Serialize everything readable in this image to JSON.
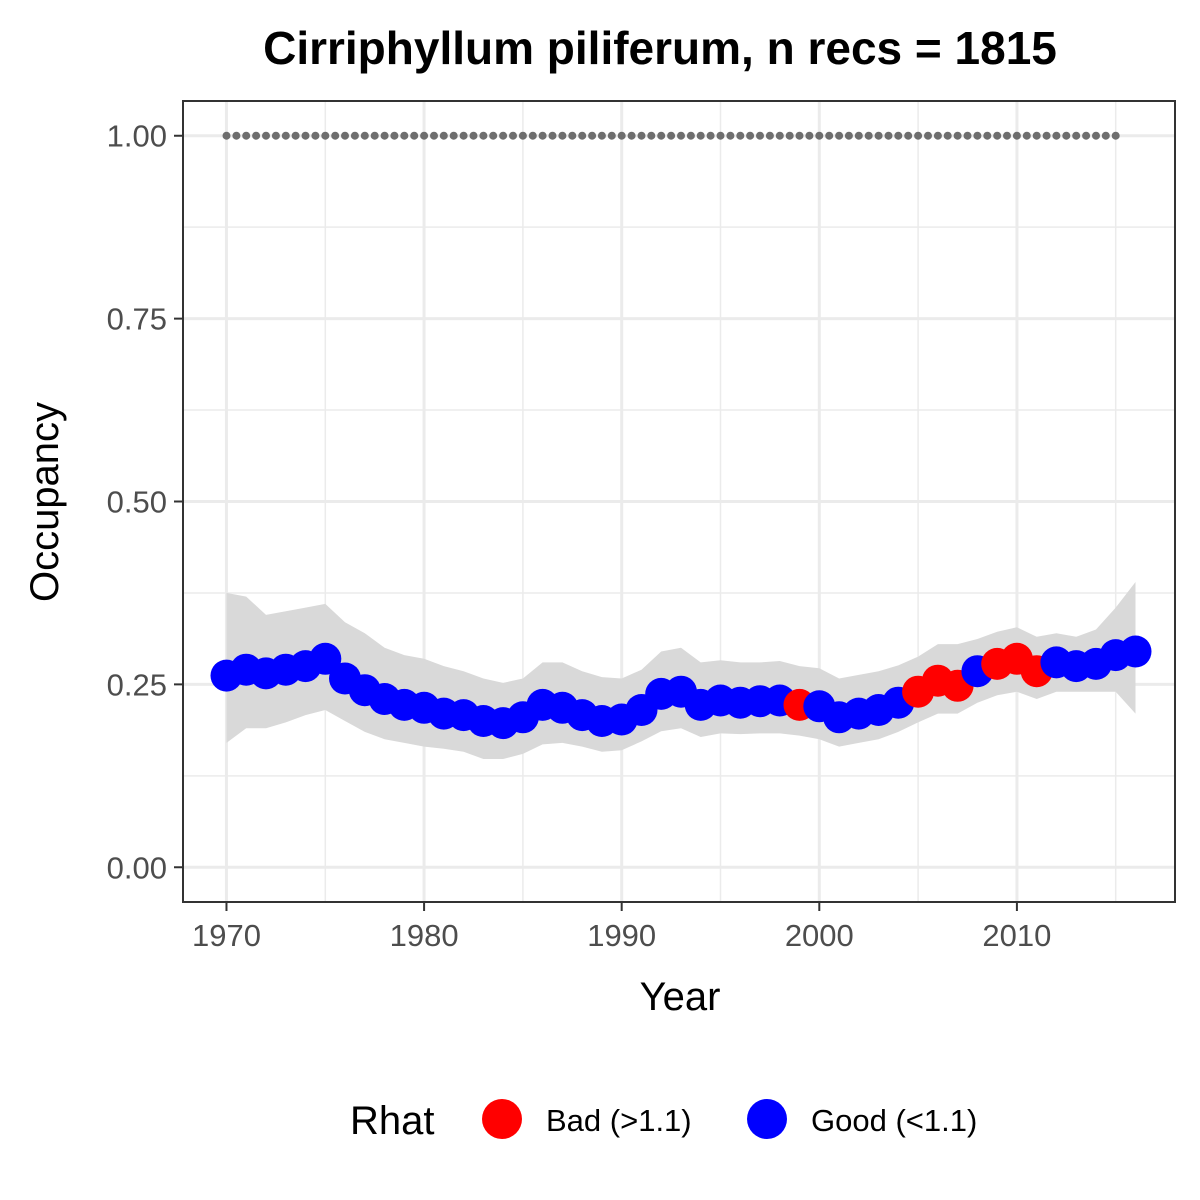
{
  "chart_data": {
    "type": "line",
    "title": "Cirriphyllum piliferum, n recs = 1815",
    "xlabel": "Year",
    "ylabel": "Occupancy",
    "xlim": [
      1967.8,
      2018
    ],
    "ylim": [
      -0.0475,
      1.0475
    ],
    "x_ticks": [
      1970,
      1980,
      1990,
      2000,
      2010
    ],
    "x_tick_labels": [
      "1970",
      "1980",
      "1990",
      "2000",
      "2010"
    ],
    "y_ticks": [
      0,
      0.25,
      0.5,
      0.75,
      1.0
    ],
    "y_tick_labels": [
      "0.00",
      "0.25",
      "0.50",
      "0.75",
      "1.00"
    ],
    "grid": true,
    "legend": {
      "title": "Rhat",
      "position": "bottom",
      "entries": [
        {
          "label": "Bad (>1.1)",
          "color": "#ff0000"
        },
        {
          "label": "Good (<1.1)",
          "color": "#0000ff"
        }
      ]
    },
    "colors": {
      "bad": "#ff0000",
      "good": "#0000ff",
      "ribbon": "#d9d9d9",
      "reference": "#6e6e6e"
    },
    "reference_line": {
      "y": 1.0,
      "x_start": 1970,
      "x_end": 2015,
      "style": "dotted"
    },
    "series": [
      {
        "name": "Occupancy",
        "x": [
          1970,
          1971,
          1972,
          1973,
          1974,
          1975,
          1976,
          1977,
          1978,
          1979,
          1980,
          1981,
          1982,
          1983,
          1984,
          1985,
          1986,
          1987,
          1988,
          1989,
          1990,
          1991,
          1992,
          1993,
          1994,
          1995,
          1996,
          1997,
          1998,
          1999,
          2000,
          2001,
          2002,
          2003,
          2004,
          2005,
          2006,
          2007,
          2008,
          2009,
          2010,
          2011,
          2012,
          2013,
          2014,
          2015,
          2016
        ],
        "y": [
          0.262,
          0.27,
          0.265,
          0.27,
          0.275,
          0.285,
          0.258,
          0.242,
          0.23,
          0.222,
          0.218,
          0.21,
          0.208,
          0.2,
          0.197,
          0.205,
          0.222,
          0.218,
          0.208,
          0.2,
          0.202,
          0.215,
          0.237,
          0.24,
          0.222,
          0.228,
          0.225,
          0.227,
          0.228,
          0.222,
          0.22,
          0.205,
          0.21,
          0.215,
          0.225,
          0.24,
          0.255,
          0.248,
          0.268,
          0.278,
          0.285,
          0.268,
          0.28,
          0.275,
          0.278,
          0.29,
          0.295
        ],
        "lower": [
          0.17,
          0.19,
          0.19,
          0.198,
          0.208,
          0.215,
          0.2,
          0.185,
          0.175,
          0.17,
          0.165,
          0.162,
          0.158,
          0.148,
          0.148,
          0.155,
          0.168,
          0.17,
          0.165,
          0.158,
          0.16,
          0.172,
          0.186,
          0.19,
          0.178,
          0.183,
          0.182,
          0.183,
          0.183,
          0.18,
          0.175,
          0.165,
          0.17,
          0.175,
          0.185,
          0.198,
          0.21,
          0.21,
          0.225,
          0.235,
          0.24,
          0.23,
          0.24,
          0.24,
          0.24,
          0.24,
          0.21
        ],
        "upper": [
          0.375,
          0.37,
          0.345,
          0.35,
          0.355,
          0.36,
          0.335,
          0.32,
          0.3,
          0.29,
          0.285,
          0.275,
          0.268,
          0.258,
          0.252,
          0.258,
          0.28,
          0.28,
          0.268,
          0.26,
          0.258,
          0.27,
          0.295,
          0.3,
          0.28,
          0.283,
          0.28,
          0.28,
          0.282,
          0.275,
          0.272,
          0.258,
          0.263,
          0.268,
          0.276,
          0.288,
          0.305,
          0.305,
          0.312,
          0.322,
          0.328,
          0.315,
          0.32,
          0.315,
          0.325,
          0.355,
          0.39
        ],
        "rhat": [
          "Good",
          "Good",
          "Good",
          "Good",
          "Good",
          "Good",
          "Good",
          "Good",
          "Good",
          "Good",
          "Good",
          "Good",
          "Good",
          "Good",
          "Good",
          "Good",
          "Good",
          "Good",
          "Good",
          "Good",
          "Good",
          "Good",
          "Good",
          "Good",
          "Good",
          "Good",
          "Good",
          "Good",
          "Good",
          "Bad",
          "Good",
          "Good",
          "Good",
          "Good",
          "Good",
          "Bad",
          "Bad",
          "Bad",
          "Good",
          "Bad",
          "Bad",
          "Bad",
          "Good",
          "Good",
          "Good",
          "Good",
          "Good"
        ]
      }
    ]
  }
}
